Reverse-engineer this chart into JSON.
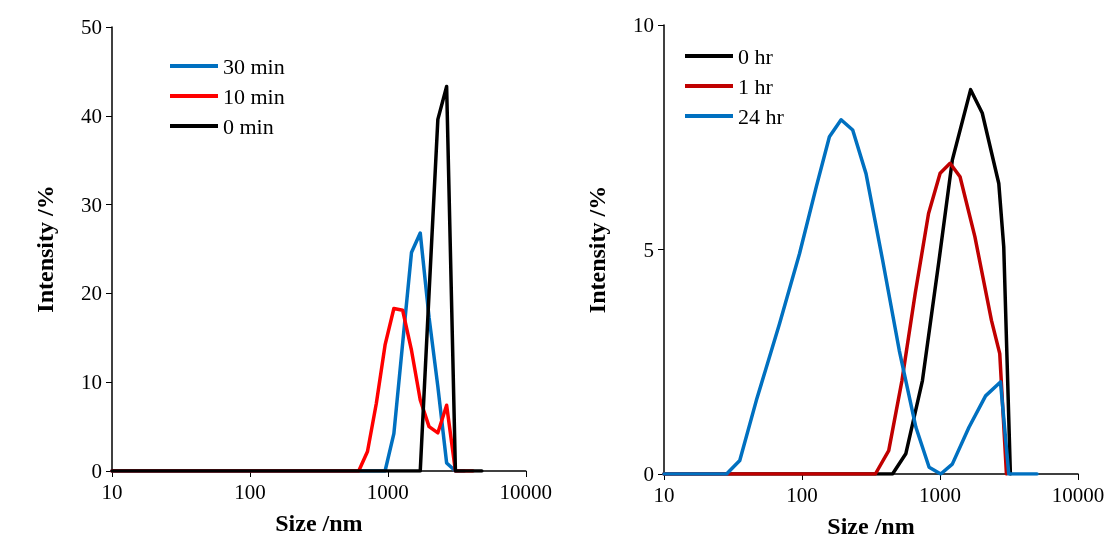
{
  "chart_data": [
    {
      "type": "line",
      "xlabel": "Size /nm",
      "ylabel": "Intensity /%",
      "log": "x",
      "xlim": [
        10,
        10000
      ],
      "xticks": [
        10,
        100,
        1000,
        10000
      ],
      "ylim": [
        0,
        50
      ],
      "yticks": [
        0,
        10,
        20,
        30,
        40,
        50
      ],
      "grid": false,
      "legend": "top left",
      "marker": "none",
      "line_style": "solid",
      "series": [
        {
          "name": "30 min",
          "color": "#0070c0",
          "x": [
            10,
            825,
            955,
            1106,
            1281,
            1484,
            1718,
            1990,
            2305,
            2669,
            3091,
            3580
          ],
          "values": [
            0,
            0,
            0,
            4.2,
            14.4,
            24.6,
            26.8,
            17.3,
            9.5,
            0.9,
            0,
            0
          ]
        },
        {
          "name": "10 min",
          "color": "#ff0000",
          "x": [
            10,
            531,
            615,
            712,
            825,
            955,
            1106,
            1281,
            1484,
            1718,
            1990,
            2305,
            2669,
            3091,
            3580,
            4145
          ],
          "values": [
            0,
            0,
            0,
            2.2,
            7.6,
            14.2,
            18.3,
            18.1,
            13.6,
            8.0,
            5.0,
            4.3,
            7.4,
            0,
            0,
            0
          ]
        },
        {
          "name": "0 min",
          "color": "#000000",
          "x": [
            10,
            1484,
            1718,
            1990,
            2305,
            2669,
            3091,
            3580,
            4145,
            4801
          ],
          "values": [
            0,
            0,
            0,
            20,
            39.6,
            43.3,
            0,
            0,
            0,
            0
          ]
        }
      ]
    },
    {
      "type": "line",
      "xlabel": "Size /nm",
      "ylabel": "Intensity /%",
      "log": "x",
      "xlim": [
        10,
        10000
      ],
      "xticks": [
        10,
        100,
        1000,
        10000
      ],
      "ylim": [
        0,
        10
      ],
      "yticks": [
        0,
        5,
        10
      ],
      "grid": false,
      "legend": "top left",
      "marker": "none",
      "line_style": "solid",
      "series": [
        {
          "name": "0 hr",
          "color": "#000000",
          "x": [
            10,
            453,
            565,
            746,
            984,
            1228,
            1667,
            2023,
            2667,
            2897,
            3236
          ],
          "values": [
            0,
            0,
            0.45,
            2.08,
            4.76,
            6.99,
            8.56,
            8.04,
            6.47,
            5.06,
            0
          ]
        },
        {
          "name": "1 hr",
          "color": "#c00000",
          "x": [
            10,
            340,
            425,
            530,
            661,
            826,
            1002,
            1183,
            1397,
            1791,
            2360,
            2710,
            3030
          ],
          "values": [
            0,
            0,
            0.52,
            2.08,
            4.02,
            5.8,
            6.7,
            6.92,
            6.62,
            5.28,
            3.42,
            2.68,
            0
          ]
        },
        {
          "name": "24 hr",
          "color": "#0070c0",
          "x": [
            10,
            28.4,
            35.4,
            46.7,
            68.8,
            96,
            127,
            158,
            192,
            233,
            291,
            384,
            507,
            669,
            834,
            1012,
            1228,
            1622,
            2140,
            2743,
            3150,
            5050
          ],
          "values": [
            0,
            0,
            0.3,
            1.64,
            3.35,
            4.91,
            6.4,
            7.51,
            7.89,
            7.66,
            6.69,
            4.76,
            2.75,
            1.04,
            0.15,
            0,
            0.22,
            1.04,
            1.74,
            2.05,
            0,
            0
          ]
        }
      ]
    }
  ]
}
